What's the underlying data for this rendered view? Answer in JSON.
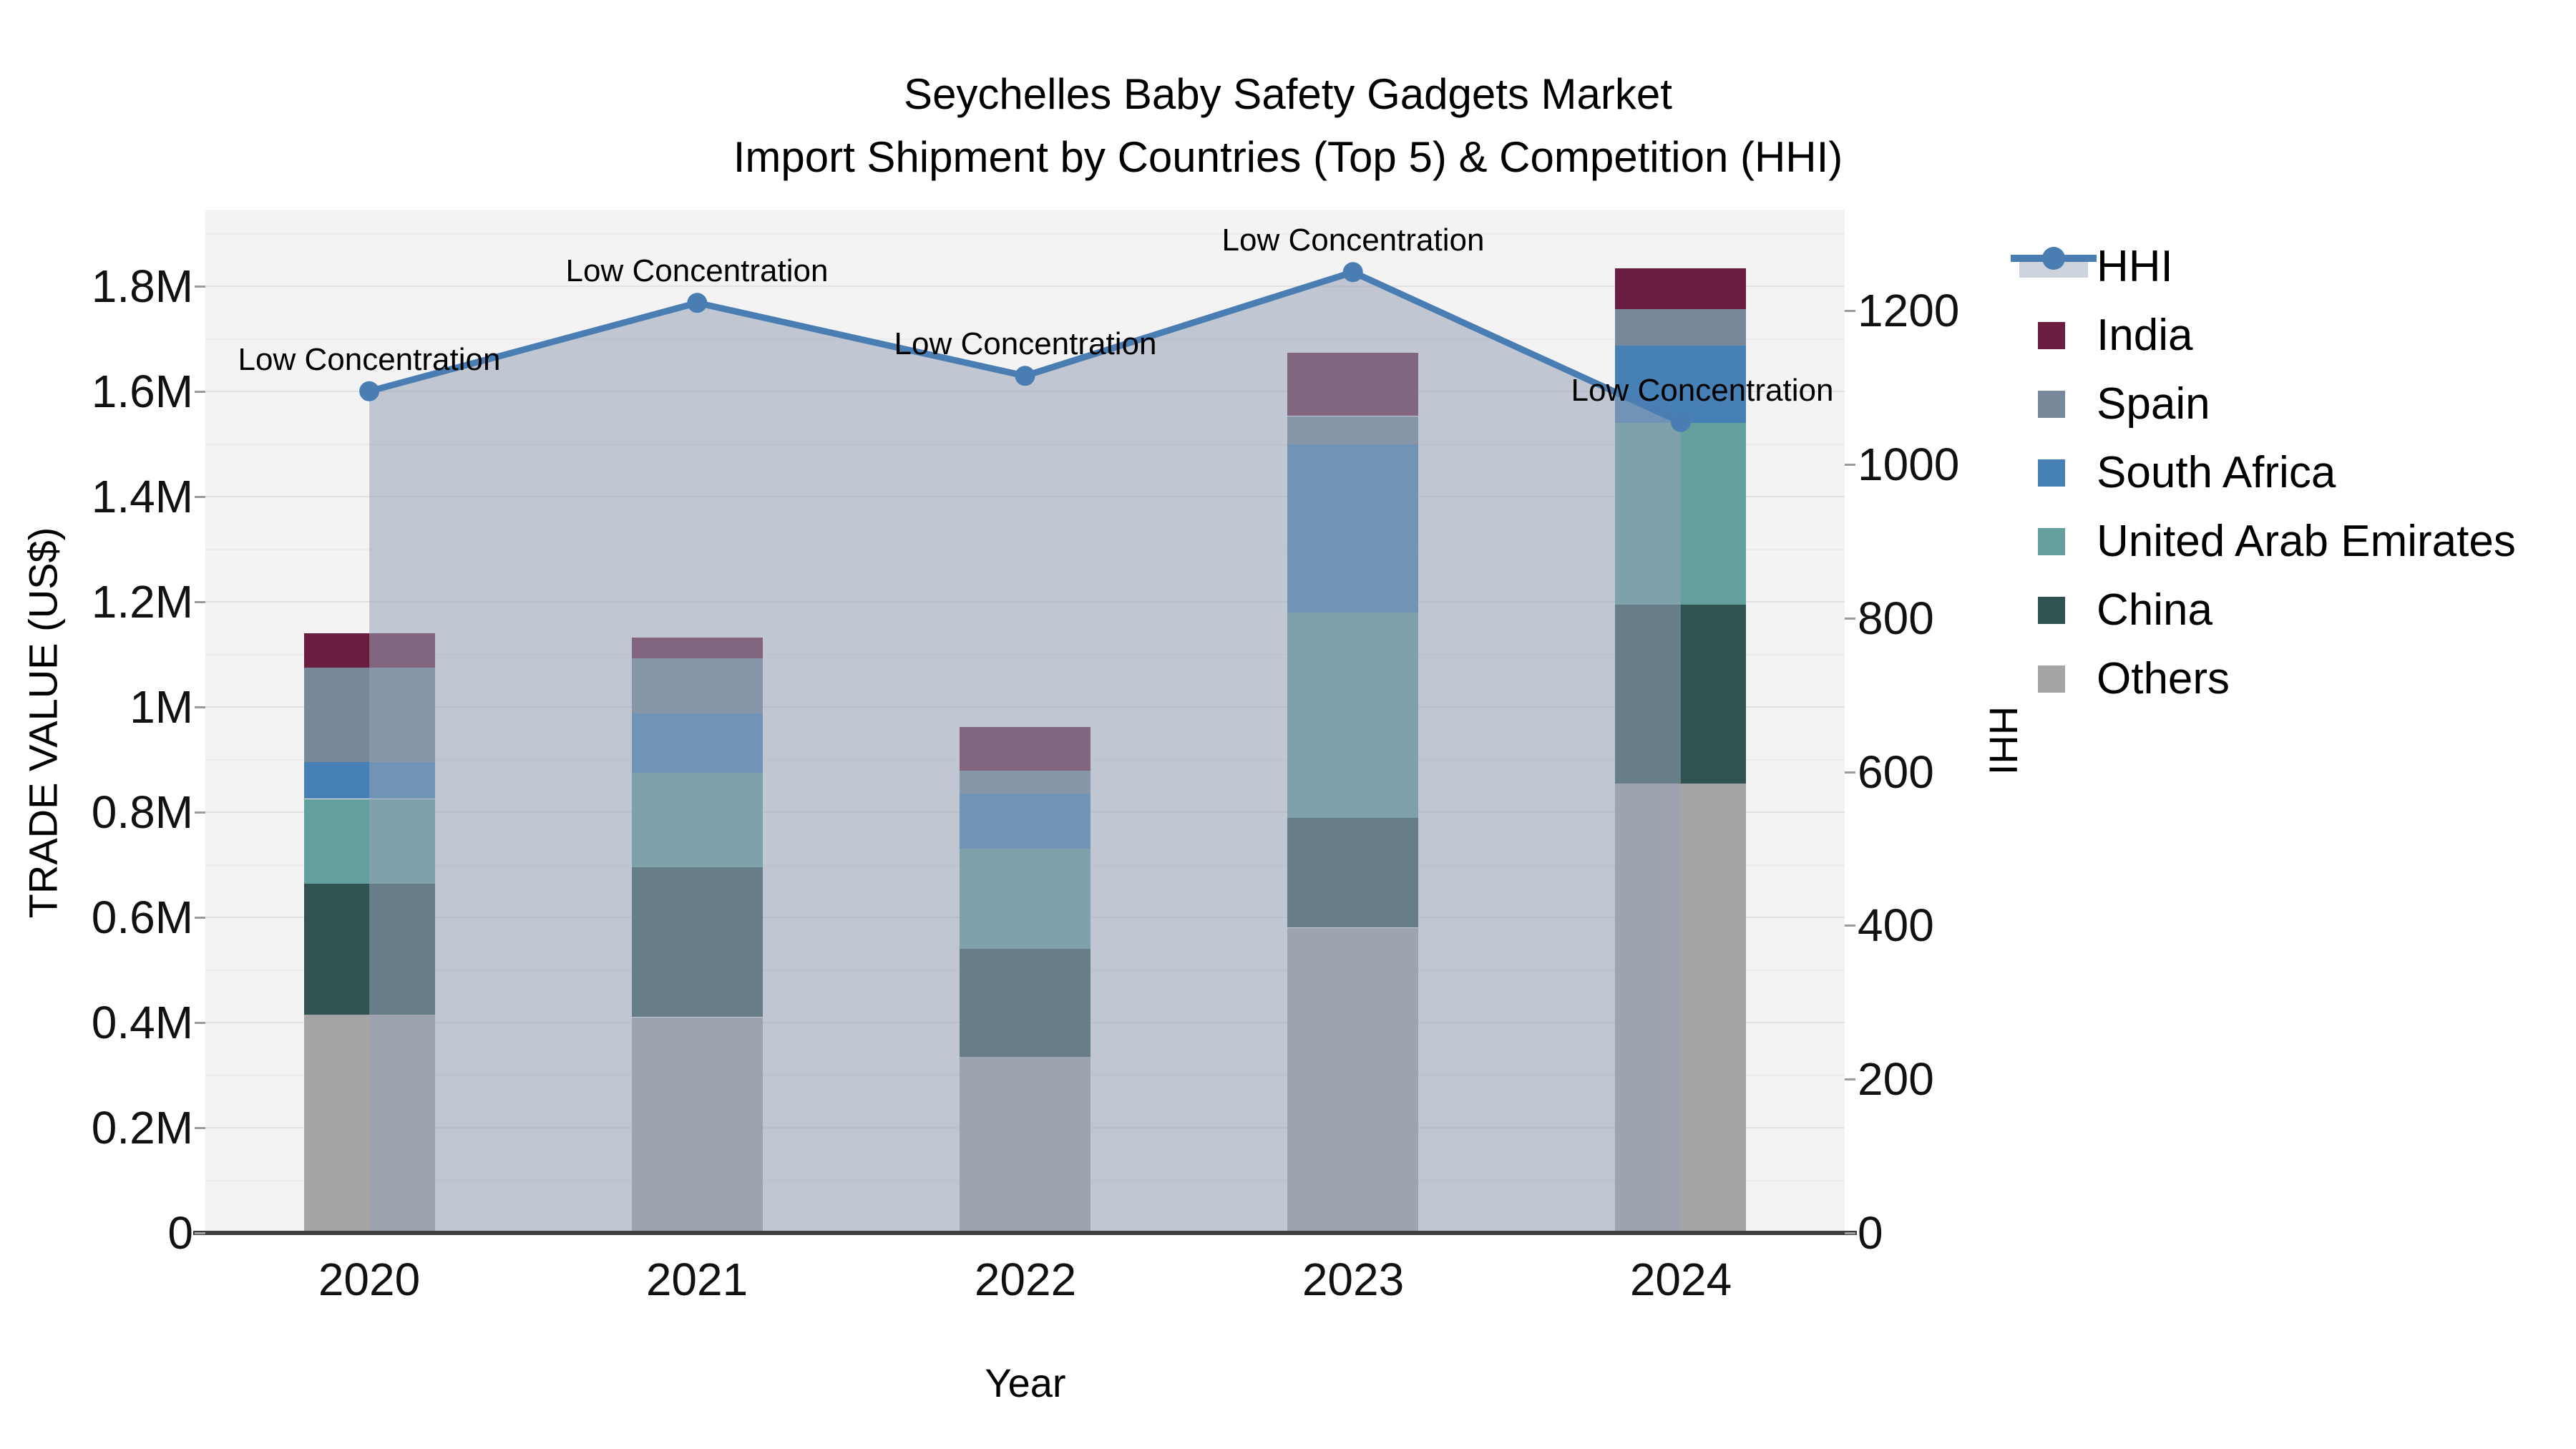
{
  "title": {
    "line1": "Seychelles Baby Safety Gadgets Market",
    "line2": "Import Shipment by Countries (Top 5) & Competition (HHI)"
  },
  "axes": {
    "x": {
      "title": "Year"
    },
    "y_left": {
      "title": "TRADE VALUE (US$)",
      "ticks": [
        {
          "value": 0,
          "label": "0"
        },
        {
          "value": 200000,
          "label": "0.2M"
        },
        {
          "value": 400000,
          "label": "0.4M"
        },
        {
          "value": 600000,
          "label": "0.6M"
        },
        {
          "value": 800000,
          "label": "0.8M"
        },
        {
          "value": 1000000,
          "label": "1M"
        },
        {
          "value": 1200000,
          "label": "1.2M"
        },
        {
          "value": 1400000,
          "label": "1.4M"
        },
        {
          "value": 1600000,
          "label": "1.6M"
        },
        {
          "value": 1800000,
          "label": "1.8M"
        }
      ]
    },
    "y_right": {
      "title": "HHI",
      "ticks": [
        {
          "value": 0,
          "label": "0"
        },
        {
          "value": 200,
          "label": "200"
        },
        {
          "value": 400,
          "label": "400"
        },
        {
          "value": 600,
          "label": "600"
        },
        {
          "value": 800,
          "label": "800"
        },
        {
          "value": 1000,
          "label": "1000"
        },
        {
          "value": 1200,
          "label": "1200"
        }
      ]
    }
  },
  "legend": {
    "items": [
      {
        "label": "HHI",
        "type": "line",
        "color": "#4a7eb3",
        "band_color": "#ccd3dc"
      },
      {
        "label": "India",
        "type": "swatch",
        "color": "#6a1d3f"
      },
      {
        "label": "Spain",
        "type": "swatch",
        "color": "#77889a"
      },
      {
        "label": "South Africa",
        "type": "swatch",
        "color": "#4680b5"
      },
      {
        "label": "United Arab Emirates",
        "type": "swatch",
        "color": "#63a09d"
      },
      {
        "label": "China",
        "type": "swatch",
        "color": "#305250"
      },
      {
        "label": "Others",
        "type": "swatch",
        "color": "#a6a5a6"
      }
    ]
  },
  "chart_data": {
    "type": "bar",
    "subtype": "stacked-bar-with-line",
    "categories": [
      "2020",
      "2021",
      "2022",
      "2023",
      "2024"
    ],
    "series": [
      {
        "name": "India",
        "color": "#6a1d3f",
        "values": [
          65000,
          39000,
          83000,
          120000,
          78000
        ]
      },
      {
        "name": "Spain",
        "color": "#77889a",
        "values": [
          180000,
          105000,
          44000,
          53000,
          69000
        ]
      },
      {
        "name": "South Africa",
        "color": "#4680b5",
        "values": [
          70000,
          113000,
          105000,
          320000,
          147000
        ]
      },
      {
        "name": "United Arab Emirates",
        "color": "#63a09d",
        "values": [
          160000,
          180000,
          190000,
          390000,
          345000
        ]
      },
      {
        "name": "China",
        "color": "#305250",
        "values": [
          250000,
          285000,
          205000,
          210000,
          340000
        ]
      },
      {
        "name": "Others",
        "color": "#a6a5a6",
        "values": [
          415000,
          410000,
          335000,
          580000,
          855000
        ]
      }
    ],
    "line_series": {
      "name": "HHI",
      "color": "#4a7eb3",
      "fill_color": "rgba(150,162,182,0.55)",
      "values": [
        1095,
        1210,
        1115,
        1250,
        1055
      ],
      "point_annotations": [
        "Low Concentration",
        "Low Concentration",
        "Low Concentration",
        "Low Concentration",
        "Low Concentration"
      ]
    },
    "title": "Seychelles Baby Safety Gadgets Market — Import Shipment by Countries (Top 5) & Competition (HHI)",
    "xlabel": "Year",
    "ylabel": "TRADE VALUE (US$)",
    "ylabel_right": "HHI",
    "ylim_left": [
      0,
      1940000
    ],
    "ylim_right": [
      0,
      1331
    ],
    "grid": true,
    "legend_position": "right"
  }
}
